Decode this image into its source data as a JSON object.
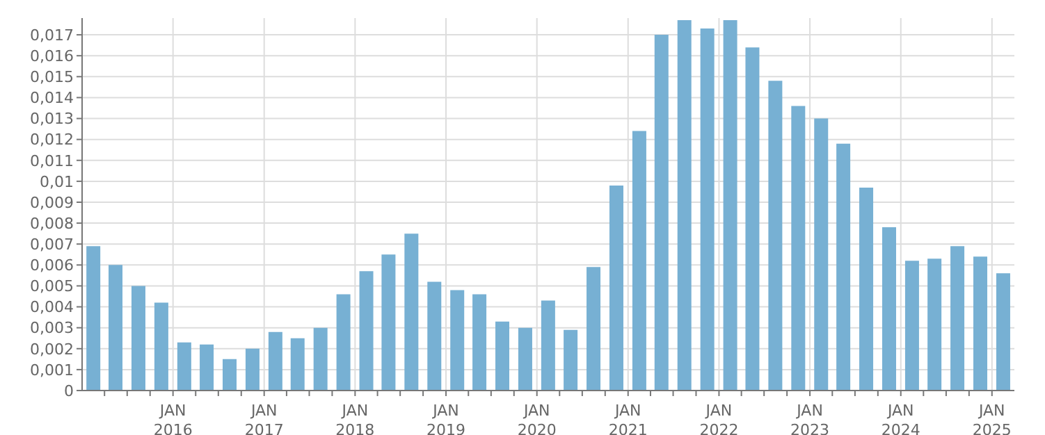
{
  "chart_data": {
    "type": "bar",
    "color": "#77b0d3",
    "x": [
      "2015-02-15",
      "2015-05-15",
      "2015-08-15",
      "2015-11-15",
      "2016-02-15",
      "2016-05-15",
      "2016-08-15",
      "2016-11-15",
      "2017-02-15",
      "2017-05-15",
      "2017-08-15",
      "2017-11-15",
      "2018-02-15",
      "2018-05-15",
      "2018-08-15",
      "2018-11-15",
      "2019-02-15",
      "2019-05-15",
      "2019-08-15",
      "2019-11-15",
      "2020-02-15",
      "2020-05-15",
      "2020-08-15",
      "2020-11-15",
      "2021-02-15",
      "2021-05-15",
      "2021-08-15",
      "2021-11-15",
      "2022-02-15",
      "2022-05-15",
      "2022-08-15",
      "2022-11-15",
      "2023-02-15",
      "2023-05-15",
      "2023-08-15",
      "2023-11-15",
      "2024-02-15",
      "2024-05-15",
      "2024-08-15",
      "2024-11-15",
      "2025-02-15"
    ],
    "values": [
      0.0069,
      0.006,
      0.005,
      0.0042,
      0.0023,
      0.0022,
      0.0015,
      0.002,
      0.0028,
      0.0025,
      0.003,
      0.0046,
      0.0057,
      0.0065,
      0.0075,
      0.0052,
      0.0048,
      0.0046,
      0.0033,
      0.003,
      0.0043,
      0.0029,
      0.0059,
      0.0098,
      0.0124,
      0.017,
      0.0177,
      0.0173,
      0.0177,
      0.0164,
      0.0148,
      0.0136,
      0.013,
      0.0118,
      0.0097,
      0.0078,
      0.0062,
      0.0063,
      0.0069,
      0.0064,
      0.0056
    ],
    "xlim": [
      "2015-01-01",
      "2025-04-01"
    ],
    "xticks": [
      {
        "value": "2015-04-01",
        "label": null
      },
      {
        "value": "2015-07-01",
        "label": null
      },
      {
        "value": "2015-10-01",
        "label": null
      },
      {
        "value": "2016-01-01",
        "label": "JAN 2016"
      },
      {
        "value": "2016-04-01",
        "label": null
      },
      {
        "value": "2016-07-01",
        "label": null
      },
      {
        "value": "2016-10-01",
        "label": null
      },
      {
        "value": "2017-01-01",
        "label": "JAN 2017"
      },
      {
        "value": "2017-04-01",
        "label": null
      },
      {
        "value": "2017-07-01",
        "label": null
      },
      {
        "value": "2017-10-01",
        "label": null
      },
      {
        "value": "2018-01-01",
        "label": "JAN 2018"
      },
      {
        "value": "2018-04-01",
        "label": null
      },
      {
        "value": "2018-07-01",
        "label": null
      },
      {
        "value": "2018-10-01",
        "label": null
      },
      {
        "value": "2019-01-01",
        "label": "JAN 2019"
      },
      {
        "value": "2019-04-01",
        "label": null
      },
      {
        "value": "2019-07-01",
        "label": null
      },
      {
        "value": "2019-10-01",
        "label": null
      },
      {
        "value": "2020-01-01",
        "label": "JAN 2020"
      },
      {
        "value": "2020-04-01",
        "label": null
      },
      {
        "value": "2020-07-01",
        "label": null
      },
      {
        "value": "2020-10-01",
        "label": null
      },
      {
        "value": "2021-01-01",
        "label": "JAN 2021"
      },
      {
        "value": "2021-04-01",
        "label": null
      },
      {
        "value": "2021-07-01",
        "label": null
      },
      {
        "value": "2021-10-01",
        "label": null
      },
      {
        "value": "2022-01-01",
        "label": "JAN 2022"
      },
      {
        "value": "2022-04-01",
        "label": null
      },
      {
        "value": "2022-07-01",
        "label": null
      },
      {
        "value": "2022-10-01",
        "label": null
      },
      {
        "value": "2023-01-01",
        "label": "JAN 2023"
      },
      {
        "value": "2023-04-01",
        "label": null
      },
      {
        "value": "2023-07-01",
        "label": null
      },
      {
        "value": "2023-10-01",
        "label": null
      },
      {
        "value": "2024-01-01",
        "label": "JAN 2024"
      },
      {
        "value": "2024-04-01",
        "label": null
      },
      {
        "value": "2024-07-01",
        "label": null
      },
      {
        "value": "2024-10-01",
        "label": null
      },
      {
        "value": "2025-01-01",
        "label": "JAN 2025"
      }
    ],
    "ylim": [
      0,
      0.0178
    ],
    "yticks": [
      {
        "value": 0,
        "label": "0"
      },
      {
        "value": 0.001,
        "label": "0,001"
      },
      {
        "value": 0.002,
        "label": "0,002"
      },
      {
        "value": 0.003,
        "label": "0,003"
      },
      {
        "value": 0.004,
        "label": "0,004"
      },
      {
        "value": 0.005,
        "label": "0,005"
      },
      {
        "value": 0.006,
        "label": "0,006"
      },
      {
        "value": 0.007,
        "label": "0,007"
      },
      {
        "value": 0.008,
        "label": "0,008"
      },
      {
        "value": 0.009,
        "label": "0,009"
      },
      {
        "value": 0.01,
        "label": "0,01"
      },
      {
        "value": 0.011,
        "label": "0,011"
      },
      {
        "value": 0.012,
        "label": "0,012"
      },
      {
        "value": 0.013,
        "label": "0,013"
      },
      {
        "value": 0.014,
        "label": "0,014"
      },
      {
        "value": 0.015,
        "label": "0,015"
      },
      {
        "value": 0.016,
        "label": "0,016"
      },
      {
        "value": 0.017,
        "label": "0,017"
      }
    ],
    "grid": true
  }
}
